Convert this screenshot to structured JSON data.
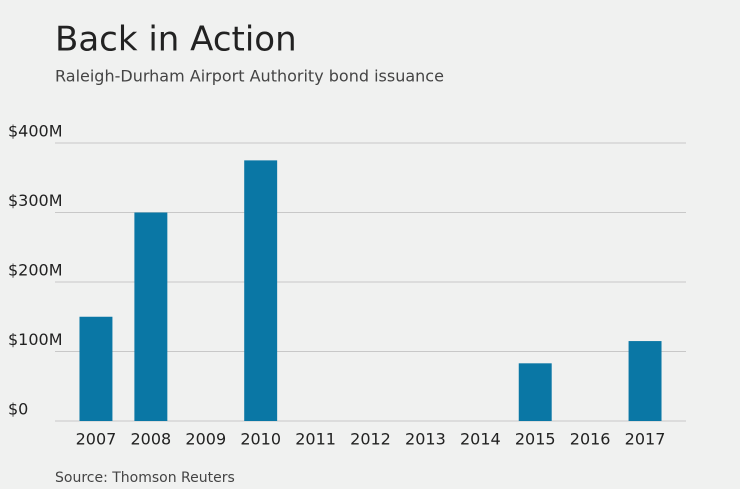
{
  "chart_data": {
    "type": "bar",
    "title": "Back in Action",
    "subtitle": "Raleigh-Durham Airport Authority bond issuance",
    "source": "Source: Thomson Reuters",
    "categories": [
      "2007",
      "2008",
      "2009",
      "2010",
      "2011",
      "2012",
      "2013",
      "2014",
      "2015",
      "2016",
      "2017"
    ],
    "values": [
      150000000,
      300000000,
      0,
      375000000,
      0,
      0,
      0,
      0,
      83000000,
      0,
      115000000
    ],
    "color": "#0a77a5",
    "ylim": [
      0,
      400000000
    ],
    "yticks": [
      {
        "value": 0,
        "label": "$0"
      },
      {
        "value": 100000000,
        "label": "$100M"
      },
      {
        "value": 200000000,
        "label": "$200M"
      },
      {
        "value": 300000000,
        "label": "$300M"
      },
      {
        "value": 400000000,
        "label": "$400M"
      }
    ],
    "grid": true
  }
}
